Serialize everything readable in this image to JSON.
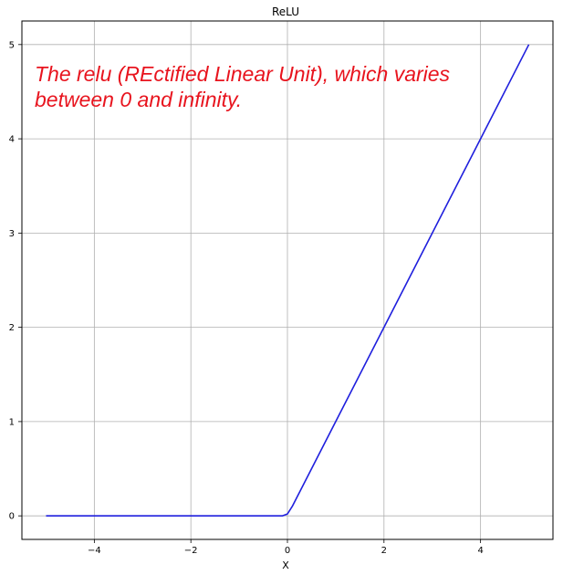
{
  "chart_data": {
    "type": "line",
    "title": "ReLU",
    "xlabel": "X",
    "ylabel": "",
    "xlim": [
      -5.5,
      5.5
    ],
    "ylim": [
      -0.25,
      5.25
    ],
    "xticks": [
      -4,
      -2,
      0,
      2,
      4
    ],
    "xtick_labels": [
      "−4",
      "−2",
      "0",
      "2",
      "4"
    ],
    "yticks": [
      0,
      1,
      2,
      3,
      4,
      5
    ],
    "ytick_labels": [
      "0",
      "1",
      "2",
      "3",
      "4",
      "5"
    ],
    "grid": true,
    "series": [
      {
        "color": "#1f1fdd",
        "x": [
          -5,
          -4,
          -3,
          -2,
          -1,
          -0.1,
          0,
          0.1,
          1,
          2,
          3,
          4,
          5
        ],
        "y": [
          0,
          0,
          0,
          0,
          0,
          0,
          0.02,
          0.1,
          1,
          2,
          3,
          4,
          5
        ]
      }
    ],
    "annotation": "The relu (REctified Linear Unit), which varies between 0 and infinity.",
    "annotation_color": "#e8141e"
  }
}
